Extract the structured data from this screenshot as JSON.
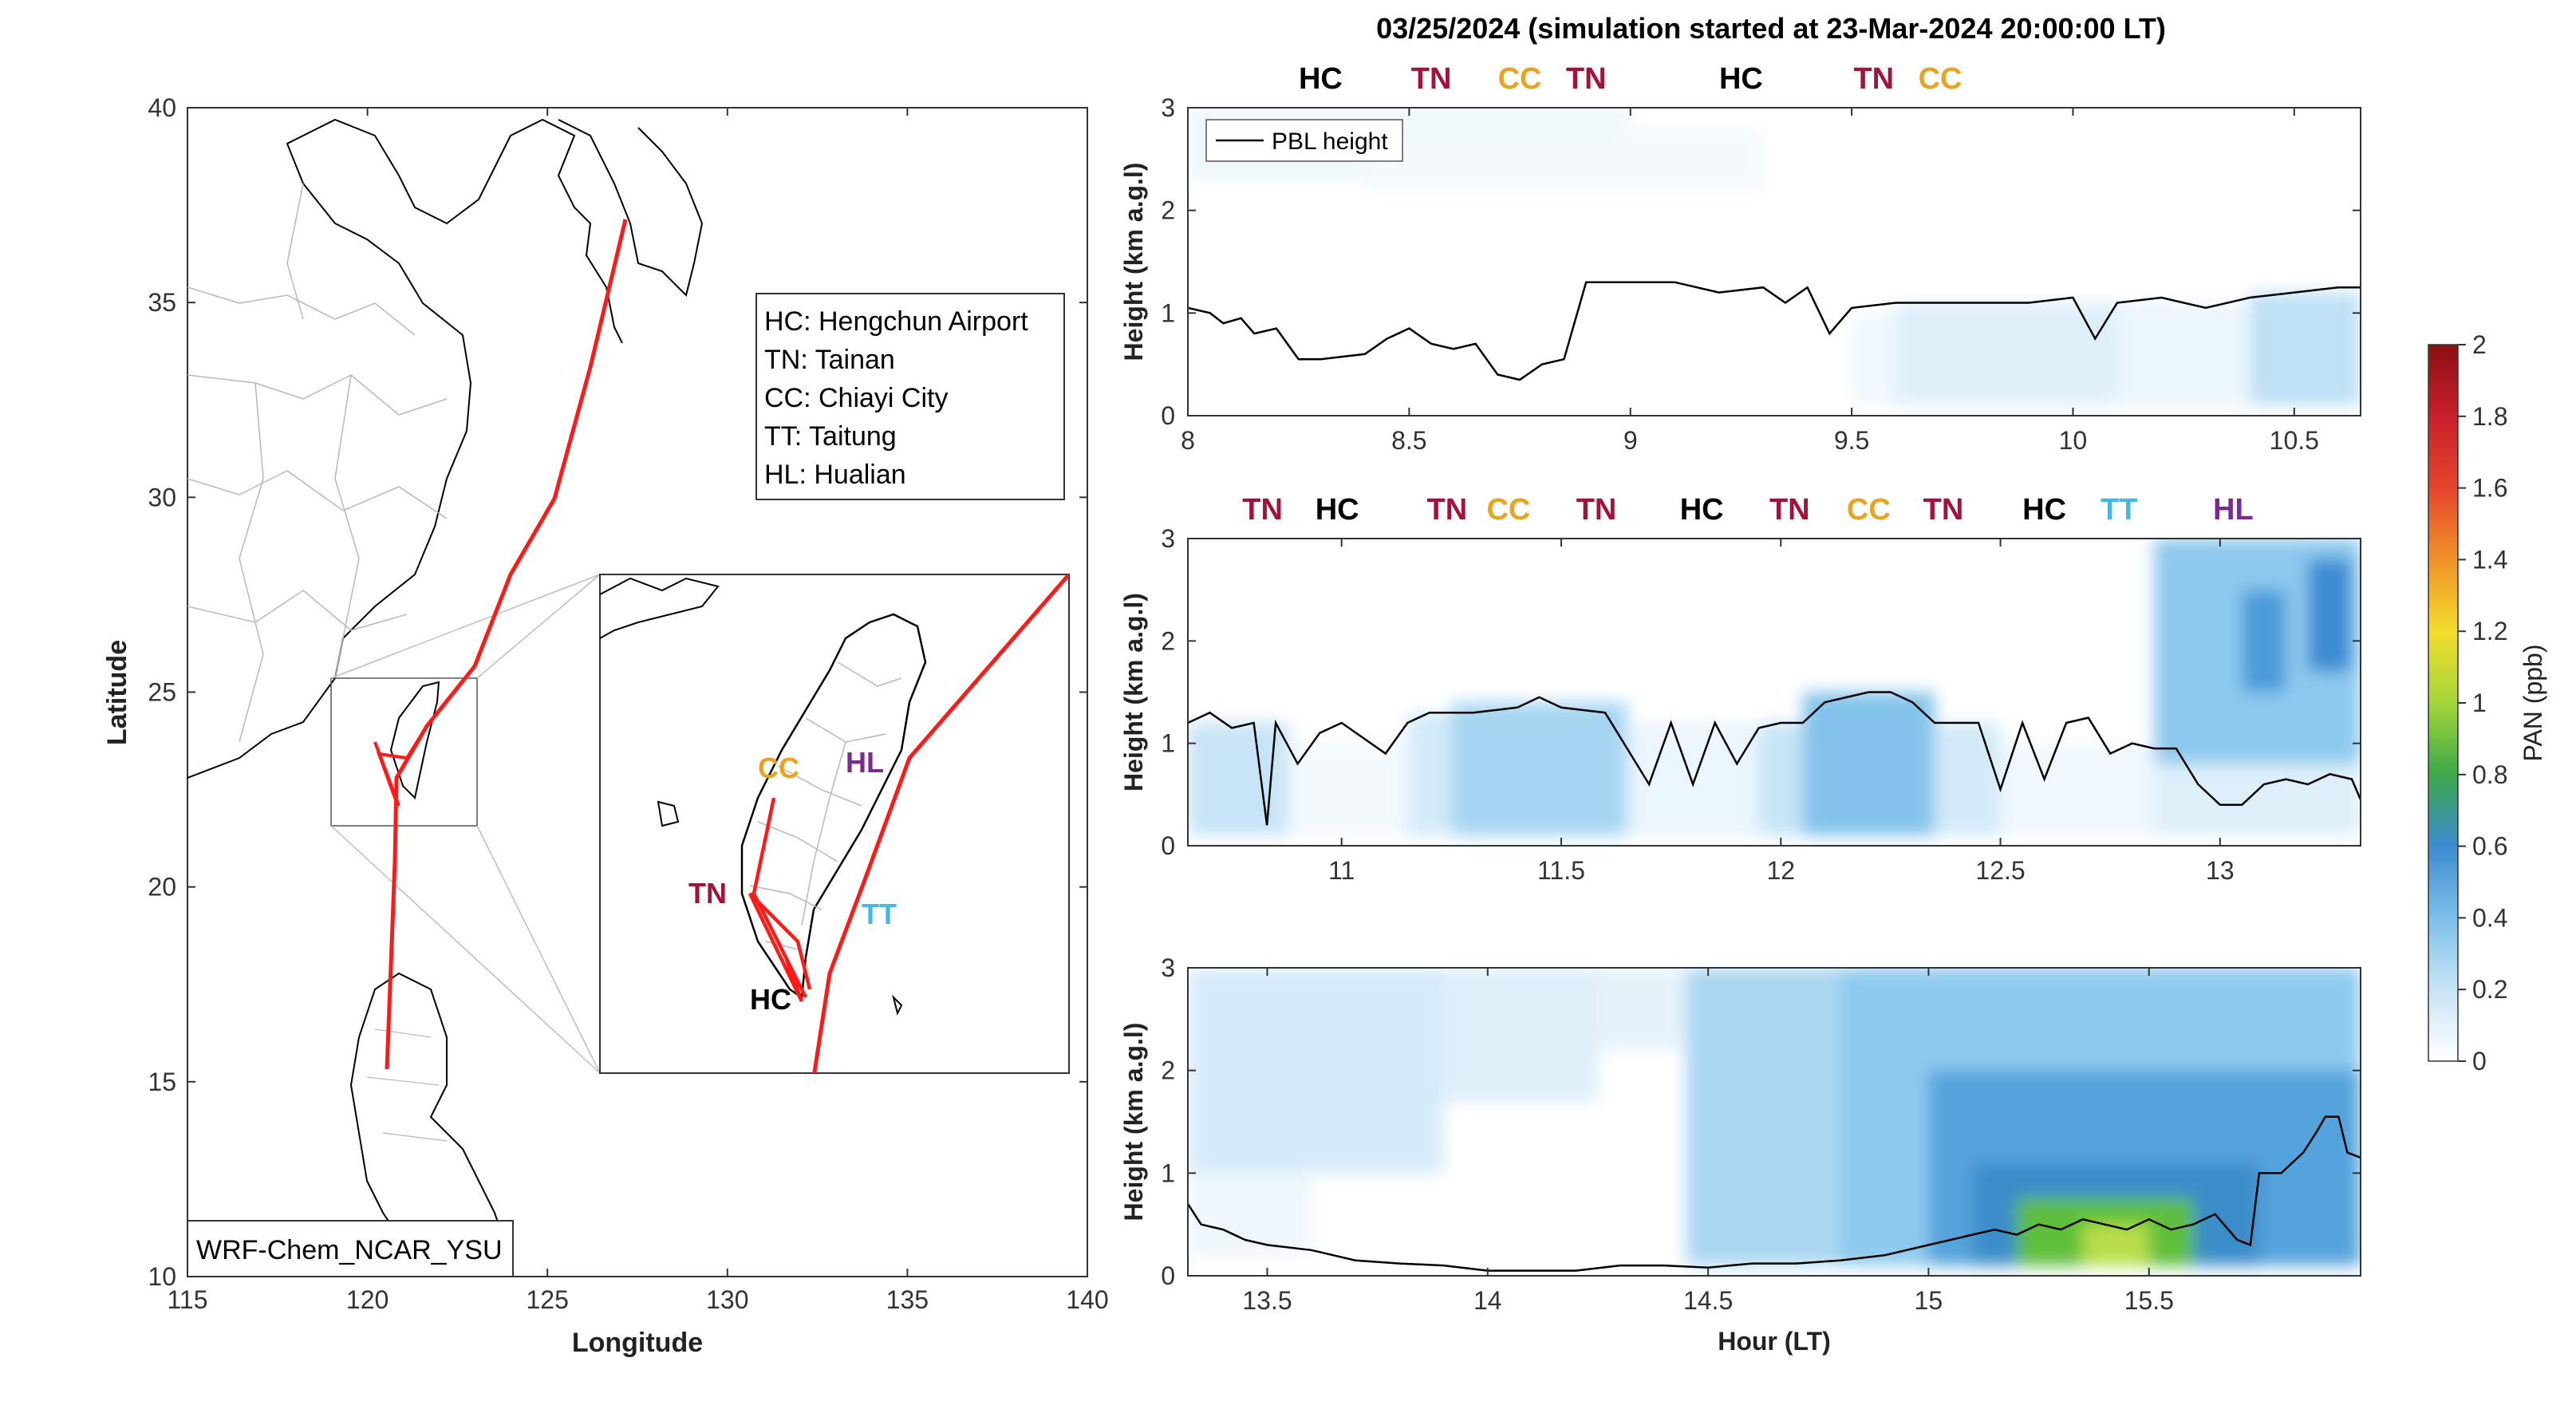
{
  "title": "03/25/2024 (simulation started at 23-Mar-2024 20:00:00 LT)",
  "colors": {
    "HC": "#000000",
    "TN": "#a3123b",
    "CC": "#e8a323",
    "TT": "#44b7ea",
    "HL": "#7b2b8f",
    "track": "#ff1a1a",
    "coast": "#000000",
    "border": "#b8b8b8"
  },
  "map": {
    "xlabel": "Longitude",
    "ylabel": "Latitude",
    "xlim": [
      115,
      140
    ],
    "ylim": [
      10,
      40
    ],
    "xticks": [
      "115",
      "120",
      "125",
      "130",
      "135",
      "140"
    ],
    "yticks": [
      "10",
      "15",
      "20",
      "25",
      "30",
      "35",
      "40"
    ],
    "legend": [
      "HC: Hengchun Airport",
      "TN: Tainan",
      "CC: Chiayi City",
      "TT: Taitung",
      "HL: Hualian"
    ],
    "model_label": "WRF-Chem_NCAR_YSU",
    "inset_labels": [
      {
        "code": "CC",
        "text": "CC"
      },
      {
        "code": "HL",
        "text": "HL"
      },
      {
        "code": "TN",
        "text": "TN"
      },
      {
        "code": "TT",
        "text": "TT"
      },
      {
        "code": "HC",
        "text": "HC"
      }
    ]
  },
  "chart_data": [
    {
      "type": "heatmap",
      "panel": "top",
      "ylabel": "Height (km a.g.l)",
      "xlim": [
        8,
        10.65
      ],
      "ylim": [
        0,
        3
      ],
      "xticks": [
        "8",
        "8.5",
        "9",
        "9.5",
        "10",
        "10.5"
      ],
      "yticks": [
        "0",
        "1",
        "2",
        "3"
      ],
      "legend": "PBL height",
      "site_labels": [
        {
          "code": "HC",
          "x": 8.3
        },
        {
          "code": "TN",
          "x": 8.55
        },
        {
          "code": "CC",
          "x": 8.75
        },
        {
          "code": "TN",
          "x": 8.9
        },
        {
          "code": "HC",
          "x": 9.25
        },
        {
          "code": "TN",
          "x": 9.55
        },
        {
          "code": "CC",
          "x": 9.7
        }
      ],
      "pbl_height": {
        "x": [
          8.0,
          8.05,
          8.08,
          8.12,
          8.15,
          8.2,
          8.25,
          8.3,
          8.4,
          8.45,
          8.5,
          8.55,
          8.6,
          8.65,
          8.7,
          8.75,
          8.8,
          8.85,
          8.9,
          8.95,
          9.0,
          9.1,
          9.2,
          9.3,
          9.35,
          9.4,
          9.45,
          9.5,
          9.6,
          9.7,
          9.8,
          9.9,
          10.0,
          10.05,
          10.1,
          10.2,
          10.3,
          10.4,
          10.5,
          10.6,
          10.65
        ],
        "y": [
          1.05,
          1.0,
          0.9,
          0.95,
          0.8,
          0.85,
          0.55,
          0.55,
          0.6,
          0.75,
          0.85,
          0.7,
          0.65,
          0.7,
          0.4,
          0.35,
          0.5,
          0.55,
          1.3,
          1.3,
          1.3,
          1.3,
          1.2,
          1.25,
          1.1,
          1.25,
          0.8,
          1.05,
          1.1,
          1.1,
          1.1,
          1.1,
          1.15,
          0.75,
          1.1,
          1.15,
          1.05,
          1.15,
          1.2,
          1.25,
          1.25
        ]
      },
      "pan_blocks": [
        {
          "x0": 8.0,
          "x1": 9.0,
          "y0": 2.3,
          "y1": 3.0,
          "v": 0.07
        },
        {
          "x0": 8.4,
          "x1": 9.3,
          "y0": 2.2,
          "y1": 2.8,
          "v": 0.05
        },
        {
          "x0": 9.5,
          "x1": 9.6,
          "y0": 0.1,
          "y1": 1.0,
          "v": 0.06
        },
        {
          "x0": 9.6,
          "x1": 10.1,
          "y0": 0.1,
          "y1": 1.1,
          "v": 0.12
        },
        {
          "x0": 10.1,
          "x1": 10.4,
          "y0": 0.1,
          "y1": 1.1,
          "v": 0.08
        },
        {
          "x0": 10.4,
          "x1": 10.65,
          "y0": 0.1,
          "y1": 1.2,
          "v": 0.2
        }
      ]
    },
    {
      "type": "heatmap",
      "panel": "middle",
      "ylabel": "Height (km a.g.l)",
      "xlim": [
        10.65,
        13.32
      ],
      "ylim": [
        0,
        3
      ],
      "xticks": [
        "11",
        "11.5",
        "12",
        "12.5",
        "13"
      ],
      "yticks": [
        "0",
        "1",
        "2",
        "3"
      ],
      "site_labels": [
        {
          "code": "TN",
          "x": 10.82
        },
        {
          "code": "HC",
          "x": 10.99
        },
        {
          "code": "TN",
          "x": 11.24
        },
        {
          "code": "CC",
          "x": 11.38
        },
        {
          "code": "TN",
          "x": 11.58
        },
        {
          "code": "HC",
          "x": 11.82
        },
        {
          "code": "TN",
          "x": 12.02
        },
        {
          "code": "CC",
          "x": 12.2
        },
        {
          "code": "TN",
          "x": 12.37
        },
        {
          "code": "HC",
          "x": 12.6
        },
        {
          "code": "TT",
          "x": 12.77
        },
        {
          "code": "HL",
          "x": 13.03
        }
      ],
      "pbl_height": {
        "x": [
          10.65,
          10.7,
          10.75,
          10.8,
          10.83,
          10.85,
          10.9,
          10.95,
          11.0,
          11.1,
          11.15,
          11.2,
          11.3,
          11.4,
          11.45,
          11.5,
          11.6,
          11.7,
          11.75,
          11.8,
          11.85,
          11.9,
          11.95,
          12.0,
          12.05,
          12.1,
          12.15,
          12.2,
          12.25,
          12.3,
          12.35,
          12.4,
          12.45,
          12.5,
          12.55,
          12.6,
          12.65,
          12.7,
          12.75,
          12.8,
          12.85,
          12.9,
          12.95,
          13.0,
          13.05,
          13.1,
          13.15,
          13.2,
          13.25,
          13.3,
          13.32
        ],
        "y": [
          1.2,
          1.3,
          1.15,
          1.2,
          0.2,
          1.2,
          0.8,
          1.1,
          1.2,
          0.9,
          1.2,
          1.3,
          1.3,
          1.35,
          1.45,
          1.35,
          1.3,
          0.6,
          1.2,
          0.6,
          1.2,
          0.8,
          1.15,
          1.2,
          1.2,
          1.4,
          1.45,
          1.5,
          1.5,
          1.4,
          1.2,
          1.2,
          1.2,
          0.55,
          1.2,
          0.65,
          1.2,
          1.25,
          0.9,
          1.0,
          0.95,
          0.95,
          0.6,
          0.4,
          0.4,
          0.6,
          0.65,
          0.6,
          0.7,
          0.65,
          0.45
        ]
      },
      "pan_blocks": [
        {
          "x0": 10.65,
          "x1": 10.88,
          "y0": 0.1,
          "y1": 1.2,
          "v": 0.18
        },
        {
          "x0": 10.88,
          "x1": 11.15,
          "y0": 0.1,
          "y1": 1.0,
          "v": 0.05
        },
        {
          "x0": 11.15,
          "x1": 11.25,
          "y0": 0.1,
          "y1": 1.3,
          "v": 0.15
        },
        {
          "x0": 11.25,
          "x1": 11.65,
          "y0": 0.1,
          "y1": 1.4,
          "v": 0.25
        },
        {
          "x0": 11.65,
          "x1": 11.95,
          "y0": 0.1,
          "y1": 1.2,
          "v": 0.08
        },
        {
          "x0": 11.95,
          "x1": 12.05,
          "y0": 0.1,
          "y1": 1.2,
          "v": 0.18
        },
        {
          "x0": 12.05,
          "x1": 12.35,
          "y0": 0.1,
          "y1": 1.5,
          "v": 0.32
        },
        {
          "x0": 12.35,
          "x1": 12.5,
          "y0": 0.1,
          "y1": 1.2,
          "v": 0.15
        },
        {
          "x0": 12.5,
          "x1": 12.85,
          "y0": 0.1,
          "y1": 1.0,
          "v": 0.06
        },
        {
          "x0": 12.85,
          "x1": 13.32,
          "y0": 0.1,
          "y1": 1.0,
          "v": 0.12
        },
        {
          "x0": 12.85,
          "x1": 13.32,
          "y0": 0.8,
          "y1": 3.0,
          "v": 0.3
        },
        {
          "x0": 13.05,
          "x1": 13.15,
          "y0": 1.5,
          "y1": 2.5,
          "v": 0.45
        },
        {
          "x0": 13.2,
          "x1": 13.3,
          "y0": 1.7,
          "y1": 2.8,
          "v": 0.5
        }
      ]
    },
    {
      "type": "heatmap",
      "panel": "bottom",
      "xlabel": "Hour (LT)",
      "ylabel": "Height (km a.g.l)",
      "xlim": [
        13.32,
        15.98
      ],
      "ylim": [
        0,
        3
      ],
      "xticks": [
        "13.5",
        "14",
        "14.5",
        "15",
        "15.5"
      ],
      "yticks": [
        "0",
        "1",
        "2",
        "3"
      ],
      "pbl_height": {
        "x": [
          13.32,
          13.35,
          13.4,
          13.45,
          13.5,
          13.6,
          13.7,
          13.8,
          13.9,
          14.0,
          14.1,
          14.2,
          14.3,
          14.4,
          14.5,
          14.6,
          14.7,
          14.8,
          14.9,
          15.0,
          15.05,
          15.1,
          15.15,
          15.2,
          15.25,
          15.3,
          15.35,
          15.4,
          15.45,
          15.5,
          15.55,
          15.6,
          15.65,
          15.7,
          15.73,
          15.75,
          15.8,
          15.85,
          15.88,
          15.9,
          15.93,
          15.95,
          15.98
        ],
        "y": [
          0.7,
          0.5,
          0.45,
          0.35,
          0.3,
          0.25,
          0.15,
          0.12,
          0.1,
          0.05,
          0.05,
          0.05,
          0.1,
          0.1,
          0.08,
          0.12,
          0.12,
          0.15,
          0.2,
          0.3,
          0.35,
          0.4,
          0.45,
          0.4,
          0.5,
          0.45,
          0.55,
          0.5,
          0.45,
          0.55,
          0.45,
          0.5,
          0.6,
          0.35,
          0.3,
          1.0,
          1.0,
          1.2,
          1.4,
          1.55,
          1.55,
          1.2,
          1.15
        ]
      },
      "pan_blocks": [
        {
          "x0": 13.32,
          "x1": 13.9,
          "y0": 1.0,
          "y1": 3.0,
          "v": 0.14
        },
        {
          "x0": 13.32,
          "x1": 13.6,
          "y0": 0.2,
          "y1": 1.0,
          "v": 0.07
        },
        {
          "x0": 13.9,
          "x1": 14.25,
          "y0": 1.7,
          "y1": 3.0,
          "v": 0.12
        },
        {
          "x0": 14.25,
          "x1": 14.45,
          "y0": 2.2,
          "y1": 3.0,
          "v": 0.1
        },
        {
          "x0": 14.45,
          "x1": 14.8,
          "y0": 0.1,
          "y1": 3.0,
          "v": 0.24
        },
        {
          "x0": 14.8,
          "x1": 15.98,
          "y0": 0.1,
          "y1": 3.0,
          "v": 0.3
        },
        {
          "x0": 15.0,
          "x1": 15.98,
          "y0": 0.1,
          "y1": 2.0,
          "v": 0.42
        },
        {
          "x0": 15.1,
          "x1": 15.75,
          "y0": 0.1,
          "y1": 1.1,
          "v": 0.55
        },
        {
          "x0": 15.2,
          "x1": 15.6,
          "y0": 0.1,
          "y1": 0.75,
          "v": 0.8
        },
        {
          "x0": 15.35,
          "x1": 15.5,
          "y0": 0.1,
          "y1": 0.5,
          "v": 1.0
        }
      ]
    }
  ],
  "colorbar": {
    "label": "PAN (ppb)",
    "min": 0,
    "max": 2,
    "ticks": [
      "0",
      "0.2",
      "0.4",
      "0.6",
      "0.8",
      "1",
      "1.2",
      "1.4",
      "1.6",
      "1.8",
      "2"
    ]
  }
}
